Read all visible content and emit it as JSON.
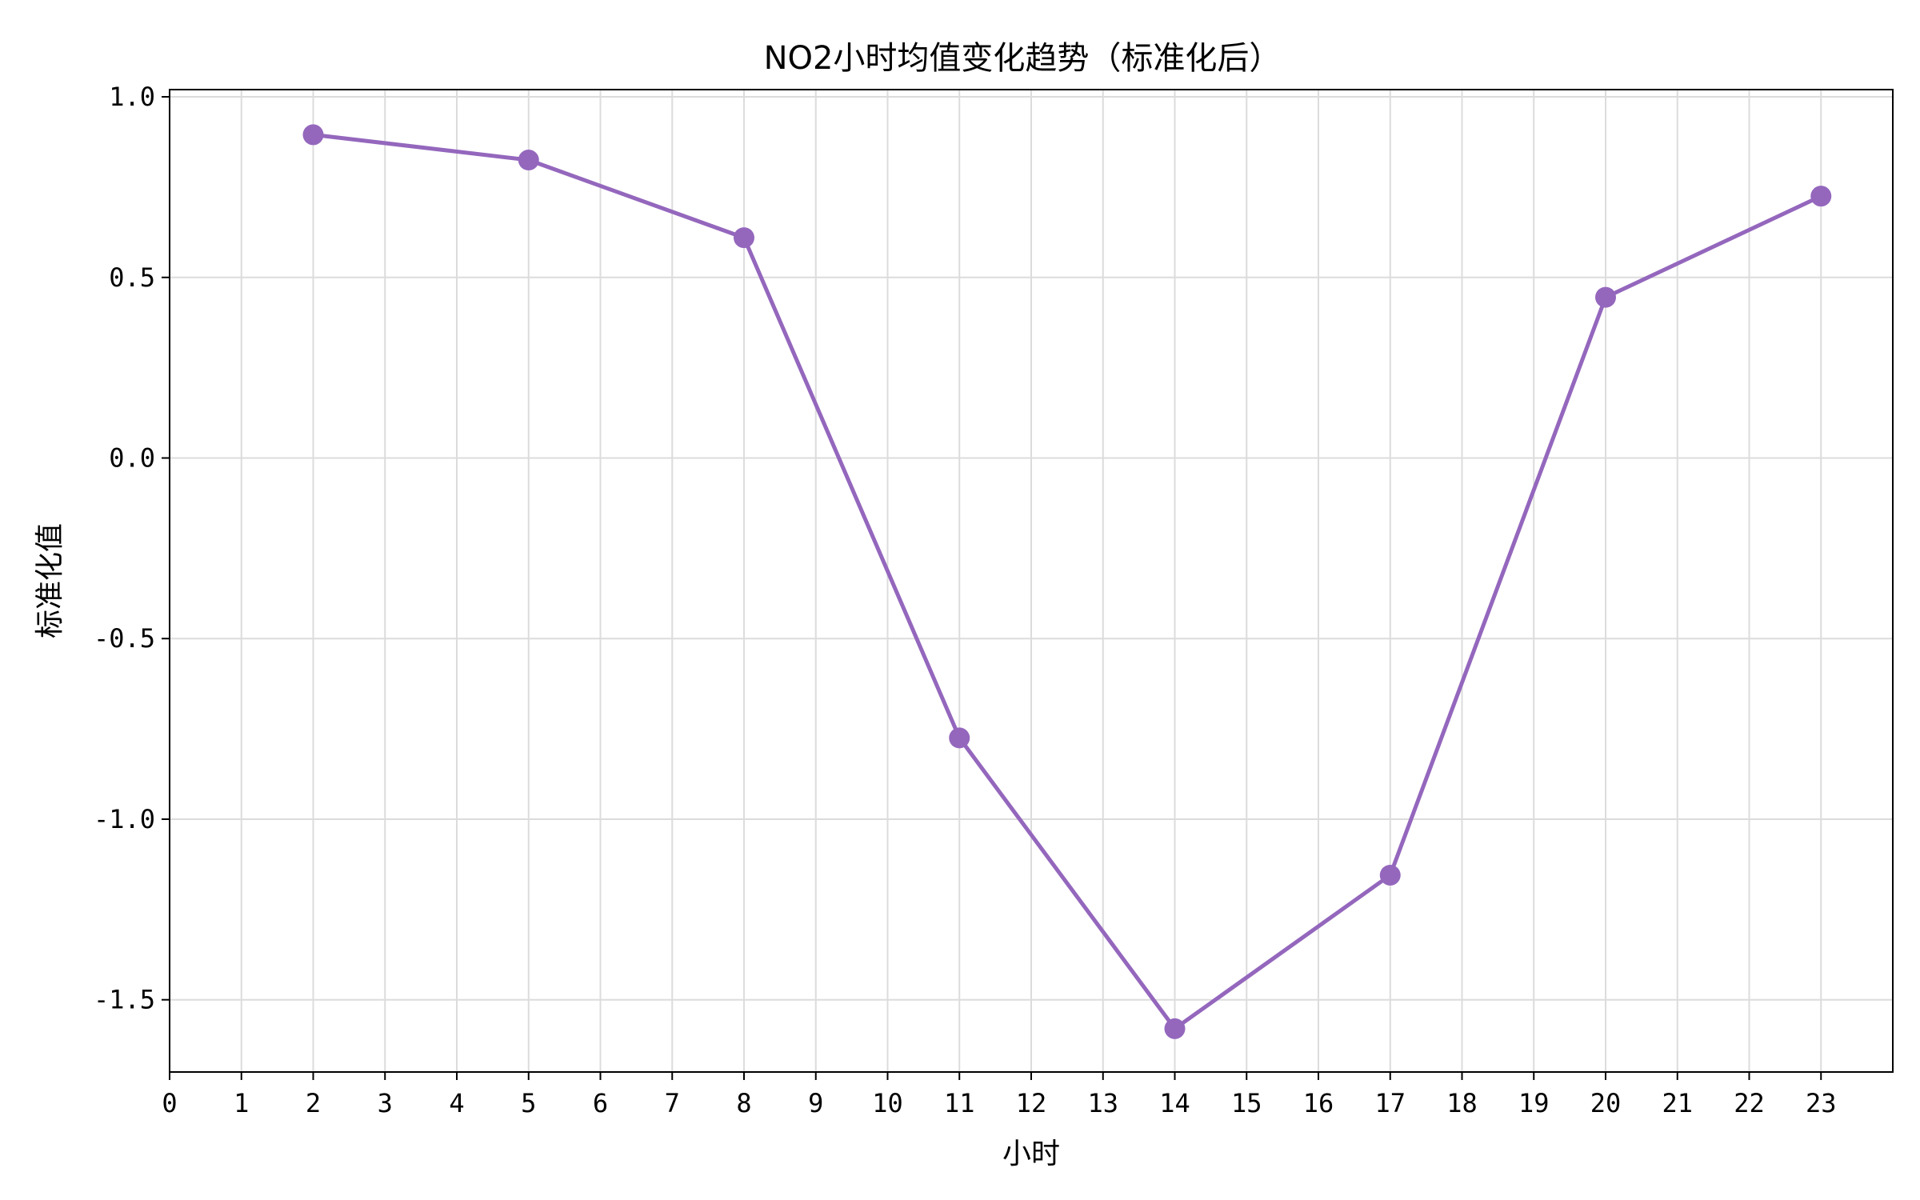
{
  "chart_data": {
    "type": "line",
    "title": "NO2小时均值变化趋势（标准化后）",
    "xlabel": "小时",
    "ylabel": "标准化值",
    "x": [
      2,
      5,
      8,
      11,
      14,
      17,
      20,
      23
    ],
    "series": [
      {
        "values": [
          0.895,
          0.825,
          0.61,
          -0.775,
          -1.58,
          -1.155,
          0.445,
          0.725
        ],
        "color": "#9467bd",
        "marker": "circle"
      }
    ],
    "xlim": [
      0,
      24
    ],
    "ylim": [
      -1.7,
      1.02
    ],
    "x_ticks": [
      0,
      1,
      2,
      3,
      4,
      5,
      6,
      7,
      8,
      9,
      10,
      11,
      12,
      13,
      14,
      15,
      16,
      17,
      18,
      19,
      20,
      21,
      22,
      23
    ],
    "x_tick_labels": [
      "0",
      "1",
      "2",
      "3",
      "4",
      "5",
      "6",
      "7",
      "8",
      "9",
      "10",
      "11",
      "12",
      "13",
      "14",
      "15",
      "16",
      "17",
      "18",
      "19",
      "20",
      "21",
      "22",
      "23"
    ],
    "y_ticks": [
      1.0,
      0.5,
      0.0,
      -0.5,
      -1.0,
      -1.5
    ],
    "y_tick_labels": [
      "1.0",
      "0.5",
      "0.0",
      "-0.5",
      "-1.0",
      "-1.5"
    ],
    "grid": true,
    "legend": false
  }
}
